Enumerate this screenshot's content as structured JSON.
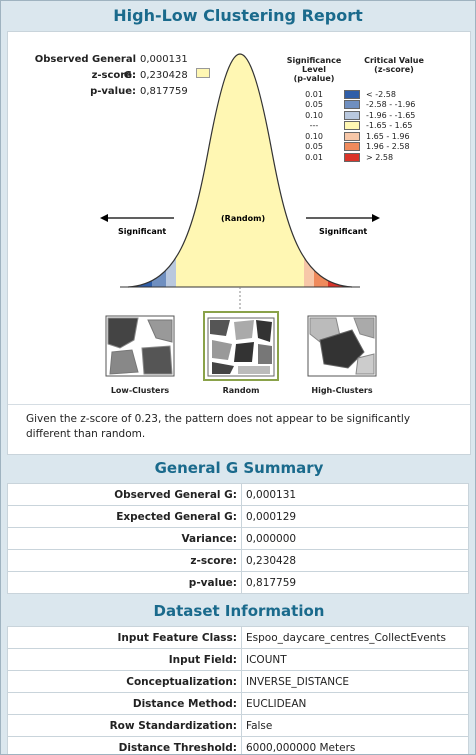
{
  "report": {
    "title": "High-Low Clustering Report"
  },
  "stats": [
    {
      "label": "Observed General G:",
      "value": "0,000131"
    },
    {
      "label": "z-score:",
      "value": "0,230428"
    },
    {
      "label": "p-value:",
      "value": "0,817759"
    }
  ],
  "legend": {
    "head_p1": "Significance Level",
    "head_p2": "(p-value)",
    "head_c1": "Critical Value",
    "head_c2": "(z-score)",
    "rows": [
      {
        "p": "0.01",
        "c": "< -2.58",
        "color": "#2f5ea8"
      },
      {
        "p": "0.05",
        "c": "-2.58 - -1.96",
        "color": "#6f8fc0"
      },
      {
        "p": "0.10",
        "c": "-1.96 - -1.65",
        "color": "#b9c8de"
      },
      {
        "p": "---",
        "c": "-1.65 - 1.65",
        "color": "#fff7b3"
      },
      {
        "p": "0.10",
        "c": "1.65 - 1.96",
        "color": "#f7c7a8"
      },
      {
        "p": "0.05",
        "c": "1.96 - 2.58",
        "color": "#ef8a5c"
      },
      {
        "p": "0.01",
        "c": "> 2.58",
        "color": "#d9342a"
      }
    ]
  },
  "curve": {
    "significant_left": "Significant",
    "random": "(Random)",
    "significant_right": "Significant"
  },
  "maps": {
    "low": "Low-Clusters",
    "random": "Random",
    "high": "High-Clusters"
  },
  "message": "Given the z-score of 0.23, the pattern does not appear to be significantly different than random.",
  "summary": {
    "title": "General G Summary",
    "rows": [
      {
        "k": "Observed General G:",
        "v": "0,000131"
      },
      {
        "k": "Expected General G:",
        "v": "0,000129"
      },
      {
        "k": "Variance:",
        "v": "0,000000"
      },
      {
        "k": "z-score:",
        "v": "0,230428"
      },
      {
        "k": "p-value:",
        "v": "0,817759"
      }
    ]
  },
  "dataset": {
    "title": "Dataset Information",
    "rows": [
      {
        "k": "Input Feature Class:",
        "v": "Espoo_daycare_centres_CollectEvents"
      },
      {
        "k": "Input Field:",
        "v": "ICOUNT"
      },
      {
        "k": "Conceptualization:",
        "v": "INVERSE_DISTANCE"
      },
      {
        "k": "Distance Method:",
        "v": "EUCLIDEAN"
      },
      {
        "k": "Row Standardization:",
        "v": "False"
      },
      {
        "k": "Distance Threshold:",
        "v": "6000,000000 Meters"
      }
    ]
  }
}
